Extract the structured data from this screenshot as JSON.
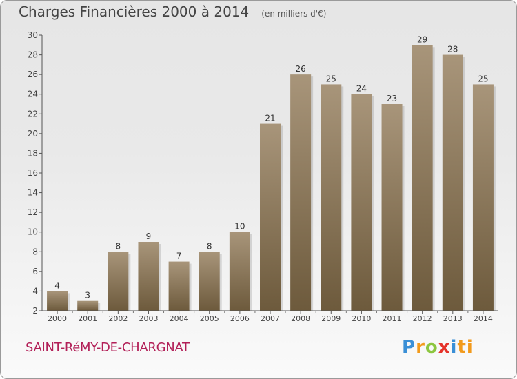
{
  "header": {
    "title": "Charges Financières 2000 à 2014",
    "unit": "(en milliers d'€)"
  },
  "footer": {
    "commune": "SAINT-RéMY-DE-CHARGNAT",
    "logo_letters": [
      "P",
      "r",
      "o",
      "x",
      "i",
      "ti"
    ]
  },
  "colors": {
    "bar_top": "#a8957a",
    "bar_bottom": "#6d5a3c",
    "commune_text": "#b21f57"
  },
  "chart_data": {
    "type": "bar",
    "title": "Charges Financières 2000 à 2014",
    "subtitle": "(en milliers d'€)",
    "categories": [
      "2000",
      "2001",
      "2002",
      "2003",
      "2004",
      "2005",
      "2006",
      "2007",
      "2008",
      "2009",
      "2010",
      "2011",
      "2012",
      "2013",
      "2014"
    ],
    "values": [
      4,
      3,
      8,
      9,
      7,
      8,
      10,
      21,
      26,
      25,
      24,
      23,
      29,
      28,
      25
    ],
    "ylim": [
      2,
      30
    ],
    "yticks": [
      2,
      4,
      6,
      8,
      10,
      12,
      14,
      16,
      18,
      20,
      22,
      24,
      26,
      28,
      30
    ],
    "grid": false,
    "legend": "none"
  }
}
